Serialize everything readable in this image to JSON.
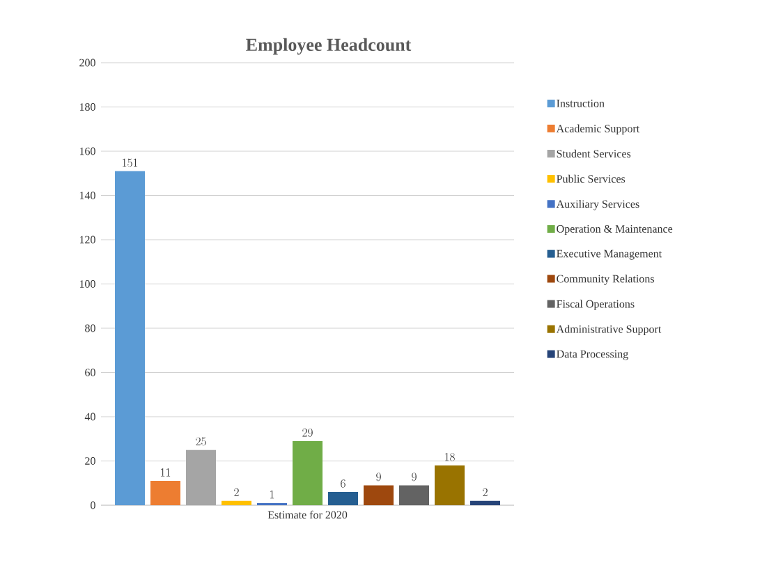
{
  "chart_data": {
    "type": "bar",
    "title": "Employee Headcount",
    "categories": [
      "Estimate for 2020"
    ],
    "series": [
      {
        "name": "Instruction",
        "color": "#5b9bd5",
        "values": [
          151
        ]
      },
      {
        "name": "Academic Support",
        "color": "#ed7d31",
        "values": [
          11
        ]
      },
      {
        "name": "Student Services",
        "color": "#a5a5a5",
        "values": [
          25
        ]
      },
      {
        "name": "Public Services",
        "color": "#ffc000",
        "values": [
          2
        ]
      },
      {
        "name": "Auxiliary Services",
        "color": "#4472c4",
        "values": [
          1
        ]
      },
      {
        "name": "Operation & Maintenance",
        "color": "#70ad47",
        "values": [
          29
        ]
      },
      {
        "name": "Executive Management",
        "color": "#255e91",
        "values": [
          6
        ]
      },
      {
        "name": "Community Relations",
        "color": "#9e480e",
        "values": [
          9
        ]
      },
      {
        "name": "Fiscal Operations",
        "color": "#636363",
        "values": [
          9
        ]
      },
      {
        "name": "Administrative Support",
        "color": "#997300",
        "values": [
          18
        ]
      },
      {
        "name": "Data Processing",
        "color": "#264478",
        "values": [
          2
        ]
      }
    ],
    "ylim": [
      0,
      200
    ],
    "yticks": [
      0,
      20,
      40,
      60,
      80,
      100,
      120,
      140,
      160,
      180,
      200
    ],
    "grid": "y",
    "legend": "right",
    "data_labels": true
  }
}
